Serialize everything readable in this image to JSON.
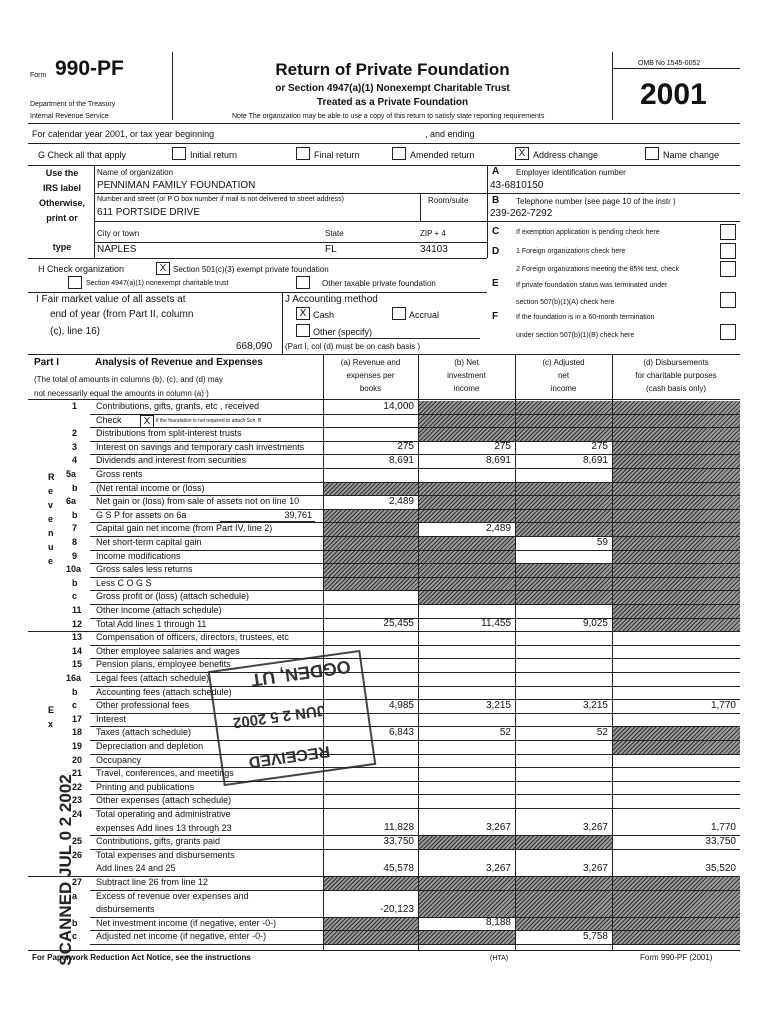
{
  "header": {
    "form": "Form",
    "form_number": "990-PF",
    "department": "Department of the Treasury",
    "irs": "Internal Revenue Service",
    "title": "Return of Private Foundation",
    "subtitle1": "or Section 4947(a)(1) Nonexempt Charitable Trust",
    "subtitle2": "Treated as a Private Foundation",
    "note": "Note The organization may be able to use a copy of this return to satisfy state reporting requirements",
    "omb": "OMB No 1545-0052",
    "year": "2001"
  },
  "calendar": {
    "start": "For calendar year 2001, or tax year beginning",
    "end": ", and ending"
  },
  "g": {
    "label": "G Check all that apply",
    "options": [
      {
        "label": "Initial return"
      },
      {
        "label": "Final return"
      },
      {
        "label": "Amended return"
      },
      {
        "label": "Address change",
        "mark": "X"
      },
      {
        "label": "Name change"
      }
    ]
  },
  "org": {
    "side": [
      "Use the",
      "IRS label",
      "Otherwise,",
      "print or",
      "type"
    ],
    "name_label": "Name of organization",
    "name": "PENNIMAN FAMILY FOUNDATION",
    "street_label": "Number and street (or P O box number if mail is not delivered to street address)",
    "room_label": "Room/suite",
    "street": "611 PORTSIDE DRIVE",
    "city_label": "City or town",
    "state_label": "State",
    "zip_label": "ZIP + 4",
    "city": "NAPLES",
    "state": "FL",
    "zip": "34103"
  },
  "right": {
    "a_letter": "A",
    "a_label": "Employer identification number",
    "ein": "43-6810150",
    "b_letter": "B",
    "b_label": "Telephone number (see page 10 of the instr )",
    "phone": "239-262-7292",
    "c_letter": "C",
    "c_label": "If exemption application is pending check here",
    "d_letter": "D",
    "d1_label": "1 Foreign organizations check here",
    "d2_label": "2 Foreign organizations meeting the 85% test, check",
    "e_letter": "E",
    "e_label1": "If private foundation status was terminated under",
    "e_label2": "section 507(b)(1)(A) check here",
    "f_letter": "F",
    "f_label1": "If the foundation is in a 60-month termination",
    "f_label2": "under section 507(b)(1)(B) check here"
  },
  "h": {
    "label": "H Check organization",
    "opt1": "Section 501(c)(3) exempt private foundation",
    "opt1_mark": "X",
    "opt2": "Section 4947(a)(1) nonexempt charitable trust",
    "opt3": "Other taxable private foundation"
  },
  "i": {
    "line1": "I Fair market value of all assets at",
    "line2": "end of year (from Part II, column",
    "line3": "(c), line 16)",
    "value": "668,090"
  },
  "j": {
    "label": "J Accounting method",
    "cash": "Cash",
    "cash_mark": "X",
    "accrual": "Accrual",
    "other": "Other (specify)",
    "note": "(Part I, col (d) must be on cash basis )"
  },
  "part1": {
    "part": "Part I",
    "title": "Analysis of Revenue and Expenses",
    "desc1": "(The total of amounts in columns (b), (c), and (d) may",
    "desc2": "not necessarily equal the amounts in column (a) )",
    "columns": [
      [
        "(a) Revenue and",
        "expenses per",
        "books"
      ],
      [
        "(b) Net",
        "investment",
        "income"
      ],
      [
        "(c) Adjusted",
        "net",
        "income"
      ],
      [
        "(d) Disbursements",
        "for charitable purposes",
        "(cash basis only)"
      ]
    ],
    "revenue_side": [
      "R",
      "e",
      "v",
      "e",
      "n",
      "u",
      "e"
    ],
    "expense_side": [
      "E",
      "x"
    ],
    "rows": [
      {
        "num": "1",
        "label": "Contributions, gifts, grants, etc , received",
        "a": "14,000"
      },
      {
        "label": "Check",
        "check": "X",
        "note": "if the foundation is not required to attach Sch. B"
      },
      {
        "num": "2",
        "label": "Distributions from split-interest trusts"
      },
      {
        "num": "3",
        "label": "Interest on savings and temporary cash investments",
        "a": "275",
        "b": "275",
        "c": "275"
      },
      {
        "num": "4",
        "label": "Dividends and interest from securities",
        "a": "8,691",
        "b": "8,691",
        "c": "8,691"
      },
      {
        "num": "5a",
        "label": "Gross rents"
      },
      {
        "num": "b",
        "label": "(Net rental income or (loss)"
      },
      {
        "num": "6a",
        "label": "Net gain or (loss) from sale of assets not on line 10",
        "a": "2,489"
      },
      {
        "num": "b",
        "label": "G S P for assets on 6a",
        "inline": "39,761"
      },
      {
        "num": "7",
        "label": "Capital gain net income (from Part IV, line 2)",
        "b": "2,489"
      },
      {
        "num": "8",
        "label": "Net short-term capital gain",
        "c": "59"
      },
      {
        "num": "9",
        "label": "Income modifications"
      },
      {
        "num": "10a",
        "label": "Gross sales less returns"
      },
      {
        "num": "b",
        "label": "Less C O G S"
      },
      {
        "num": "c",
        "label": "Gross profit or (loss) (attach schedule)"
      },
      {
        "num": "11",
        "label": "Other income (attach schedule)"
      },
      {
        "num": "12",
        "label": "Total Add lines 1 through 11",
        "a": "25,455",
        "b": "11,455",
        "c": "9,025"
      },
      {
        "num": "13",
        "label": "Compensation of officers, directors, trustees, etc"
      },
      {
        "num": "14",
        "label": "Other employee salaries and wages"
      },
      {
        "num": "15",
        "label": "Pension plans, employee benefits"
      },
      {
        "num": "16a",
        "label": "Legal fees (attach schedule)"
      },
      {
        "num": "b",
        "label": "Accounting fees (attach schedule)"
      },
      {
        "num": "c",
        "label": "Other professional fees",
        "a": "4,985",
        "b": "3,215",
        "c": "3,215",
        "d": "1,770"
      },
      {
        "num": "17",
        "label": "Interest"
      },
      {
        "num": "18",
        "label": "Taxes (attach schedule)",
        "a": "6,843",
        "b": "52",
        "c": "52"
      },
      {
        "num": "19",
        "label": "Depreciation and depletion"
      },
      {
        "num": "20",
        "label": "Occupancy"
      },
      {
        "num": "21",
        "label": "Travel, conferences, and meetings"
      },
      {
        "num": "22",
        "label": "Printing and publications"
      },
      {
        "num": "23",
        "label": "Other expenses (attach schedule)"
      },
      {
        "num": "24",
        "label": "Total operating and administrative",
        "label2": "expenses Add lines 13 through 23",
        "a": "11,828",
        "b": "3,267",
        "c": "3,267",
        "d": "1,770"
      },
      {
        "num": "25",
        "label": "Contributions, gifts, grants paid",
        "a": "33,750",
        "d": "33,750"
      },
      {
        "num": "26",
        "label": "Total expenses and disbursements",
        "label2": "Add lines 24 and 25",
        "a": "45,578",
        "b": "3,267",
        "c": "3,267",
        "d": "35,520"
      },
      {
        "num": "27",
        "label": "Subtract line 26 from line 12"
      },
      {
        "num": "a",
        "label": "Excess of revenue over expenses and",
        "label2": "disbursements",
        "a": "-20,123"
      },
      {
        "num": "b",
        "label": "Net investment income (if negative, enter -0-)",
        "b": "8,188"
      },
      {
        "num": "c",
        "label": "Adjusted net income (if negative, enter -0-)",
        "c": "5,758"
      }
    ]
  },
  "stamps": {
    "received": "RECEIVED",
    "date": "JUN 2 5 2002",
    "place": "OGDEN, UT",
    "scanned": "SCANNED JUL 0 2 2002"
  },
  "footer": {
    "left": "For Paperwork Reduction Act Notice, see the instructions",
    "mid": "(HTA)",
    "right": "Form 990-PF (2001)"
  }
}
